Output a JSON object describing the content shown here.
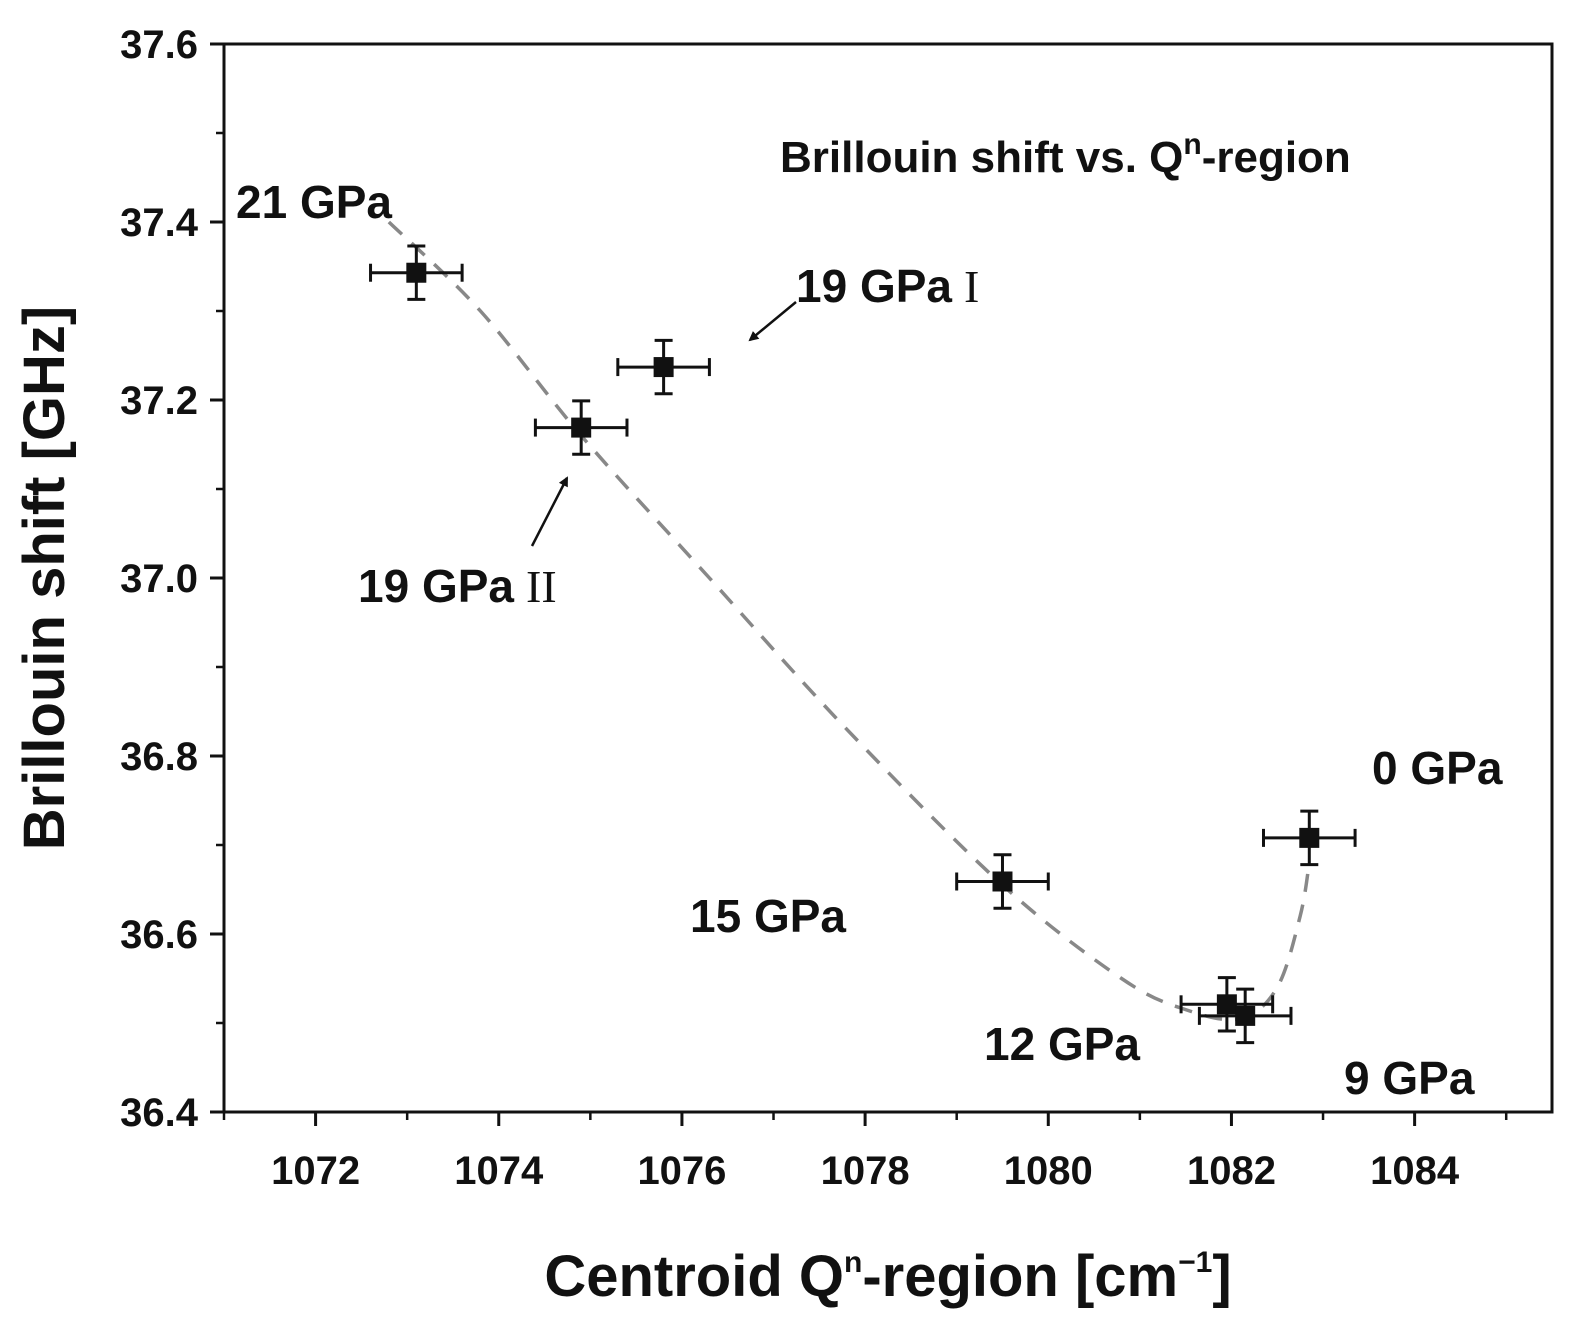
{
  "chart_data": {
    "type": "scatter",
    "title": "Brillouin shift vs. Qⁿ-region",
    "xlabel": "Centroid Qⁿ-region [cm⁻¹]",
    "ylabel": "Brillouin shift [GHz]",
    "xlabel_parts": {
      "pre": "Centroid Q",
      "sup1": "n",
      "mid": "-region [cm",
      "sup2": "−1",
      "post": "]"
    },
    "title_parts": {
      "pre": "Brillouin shift vs. Q",
      "sup": "n",
      "post": "-region"
    },
    "xlim": [
      1071,
      1085.5
    ],
    "ylim": [
      36.4,
      37.6
    ],
    "xticks": [
      1072,
      1074,
      1076,
      1078,
      1080,
      1082,
      1084
    ],
    "yticks": [
      36.4,
      36.6,
      36.8,
      37.0,
      37.2,
      37.4,
      37.6
    ],
    "xtick_labels": [
      "1072",
      "1074",
      "1076",
      "1078",
      "1080",
      "1082",
      "1084"
    ],
    "ytick_labels": [
      "36.4",
      "36.6",
      "36.8",
      "37.0",
      "37.2",
      "37.4",
      "37.6"
    ],
    "x_minor_step": 1,
    "y_minor_step": 0.1,
    "series": [
      {
        "name": "data",
        "marker": "square",
        "color": "#111111",
        "points": [
          {
            "x": 1073.1,
            "y": 37.343,
            "xerr": 0.5,
            "yerr": 0.03,
            "label": "21 GPa"
          },
          {
            "x": 1075.8,
            "y": 37.237,
            "xerr": 0.5,
            "yerr": 0.03,
            "label": "19 GPa",
            "roman": "I"
          },
          {
            "x": 1074.9,
            "y": 37.169,
            "xerr": 0.5,
            "yerr": 0.03,
            "label": "19 GPa",
            "roman": "II"
          },
          {
            "x": 1079.5,
            "y": 36.659,
            "xerr": 0.5,
            "yerr": 0.03,
            "label": "15 GPa"
          },
          {
            "x": 1081.95,
            "y": 36.521,
            "xerr": 0.5,
            "yerr": 0.03,
            "label": "12 GPa"
          },
          {
            "x": 1082.15,
            "y": 36.508,
            "xerr": 0.5,
            "yerr": 0.03,
            "label": "9 GPa"
          },
          {
            "x": 1082.85,
            "y": 36.708,
            "xerr": 0.5,
            "yerr": 0.03,
            "label": "0 GPa"
          }
        ]
      }
    ],
    "fit_curve": {
      "style": "dashed",
      "color": "#888888",
      "points": [
        {
          "x": 1072.8,
          "y": 37.4
        },
        {
          "x": 1073.8,
          "y": 37.3
        },
        {
          "x": 1074.9,
          "y": 37.16
        },
        {
          "x": 1076.3,
          "y": 37.0
        },
        {
          "x": 1077.8,
          "y": 36.83
        },
        {
          "x": 1079.5,
          "y": 36.655
        },
        {
          "x": 1080.8,
          "y": 36.55
        },
        {
          "x": 1081.5,
          "y": 36.515
        },
        {
          "x": 1082.1,
          "y": 36.505
        },
        {
          "x": 1082.5,
          "y": 36.54
        },
        {
          "x": 1082.75,
          "y": 36.62
        },
        {
          "x": 1082.85,
          "y": 36.68
        }
      ]
    }
  },
  "labels": {
    "l21": "21 GPa",
    "l19i": "19 GPa",
    "l19i_roman": "I",
    "l19ii": "19 GPa",
    "l19ii_roman": "II",
    "l15": "15 GPa",
    "l12": "12 GPa",
    "l9": "9 GPa",
    "l0": "0 GPa"
  }
}
